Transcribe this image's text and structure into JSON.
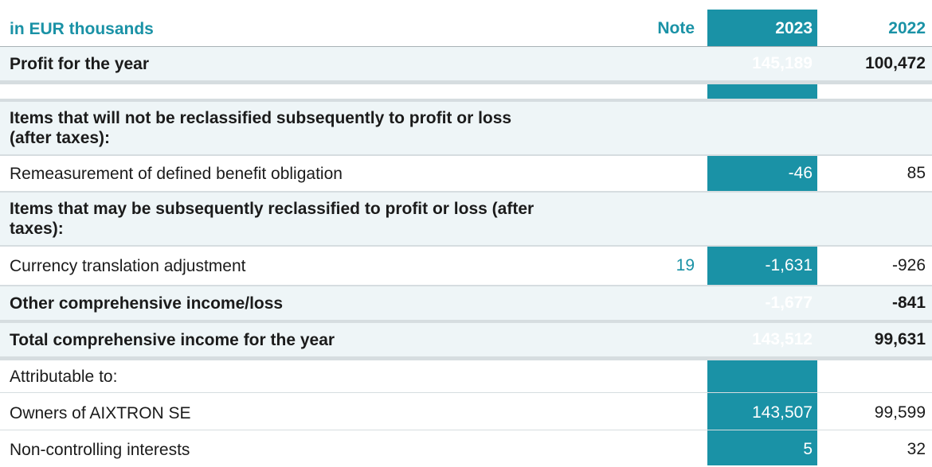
{
  "table": {
    "header": {
      "label": "in EUR thousands",
      "note": "Note",
      "year_current": "2023",
      "year_prior": "2022"
    },
    "rows": [
      {
        "label": "Profit for the year",
        "note": "",
        "v2023": "145,189",
        "v2022": "100,472"
      },
      {
        "label": "Items that will not be reclassified subsequently to profit or loss (after taxes):",
        "note": "",
        "v2023": "",
        "v2022": ""
      },
      {
        "label": "Remeasurement of defined benefit obligation",
        "note": "",
        "v2023": "-46",
        "v2022": "85"
      },
      {
        "label": "Items that may be subsequently reclassified to profit or loss (after taxes):",
        "note": "",
        "v2023": "",
        "v2022": ""
      },
      {
        "label": "Currency translation adjustment",
        "note": "19",
        "v2023": "-1,631",
        "v2022": "-926"
      },
      {
        "label": "Other comprehensive income/loss",
        "note": "",
        "v2023": "-1,677",
        "v2022": "-841"
      },
      {
        "label": "Total comprehensive income for the year",
        "note": "",
        "v2023": "143,512",
        "v2022": "99,631"
      },
      {
        "label": "Attributable to:",
        "note": "",
        "v2023": "",
        "v2022": ""
      },
      {
        "label": "Owners of AIXTRON SE",
        "note": "",
        "v2023": "143,507",
        "v2022": "99,599"
      },
      {
        "label": "Non-controlling interests",
        "note": "",
        "v2023": "5",
        "v2022": "32"
      }
    ]
  },
  "colors": {
    "accent": "#1a92a6",
    "shade": "#eef5f7"
  }
}
